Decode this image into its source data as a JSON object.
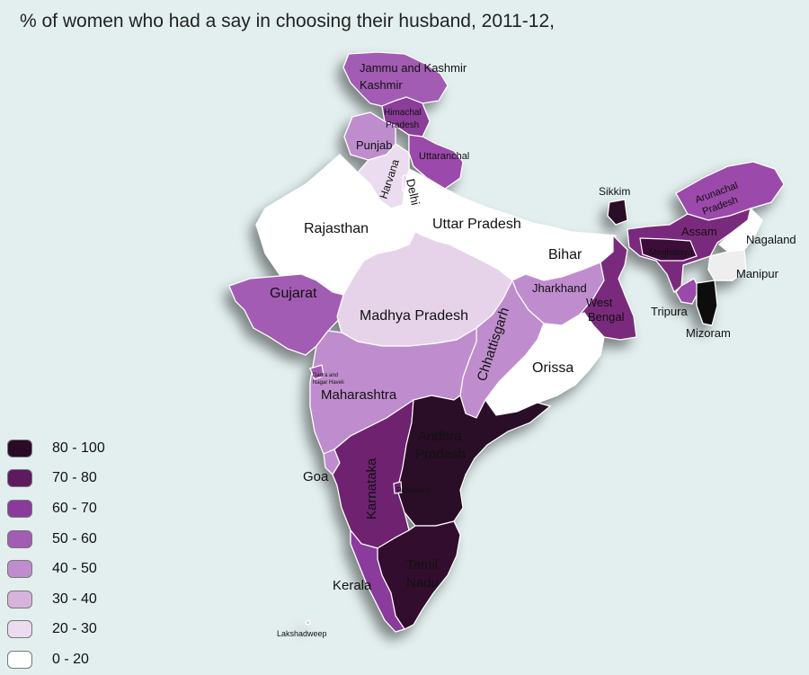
{
  "title": "% of women who had a say in choosing their husband, 2011-12,",
  "legend": [
    {
      "label": "80 - 100",
      "color": "#2a0a26"
    },
    {
      "label": "70 - 80",
      "color": "#5e1a5e"
    },
    {
      "label": "60 - 70",
      "color": "#8b3a9b"
    },
    {
      "label": "50 - 60",
      "color": "#a35cb3"
    },
    {
      "label": "40 - 50",
      "color": "#bf8dce"
    },
    {
      "label": "30 - 40",
      "color": "#d6b3da"
    },
    {
      "label": "20 - 30",
      "color": "#ecdcef"
    },
    {
      "label": "0 - 20",
      "color": "#ffffff"
    }
  ],
  "states": [
    {
      "id": "jammu-kashmir",
      "name": "Jammu and Kashmir",
      "range": "50 - 60",
      "color": "#a35cb3"
    },
    {
      "id": "himachal",
      "name": "Himachal Pradesh",
      "range": "70 - 80",
      "color": "#8a3c99"
    },
    {
      "id": "punjab",
      "name": "Punjab",
      "range": "40 - 50",
      "color": "#bf8dce"
    },
    {
      "id": "uttaranchal",
      "name": "Uttaranchal",
      "range": "60 - 70",
      "color": "#9b4aaa"
    },
    {
      "id": "haryana",
      "name": "Harvana",
      "range": "20 - 30",
      "color": "#ecdcef"
    },
    {
      "id": "delhi",
      "name": "Delhi",
      "range": "20 - 30",
      "color": "#ecdcef"
    },
    {
      "id": "rajasthan",
      "name": "Rajasthan",
      "range": "0 - 20",
      "color": "#ffffff"
    },
    {
      "id": "uttar-pradesh",
      "name": "Uttar Pradesh",
      "range": "0 - 20",
      "color": "#ffffff"
    },
    {
      "id": "bihar",
      "name": "Bihar",
      "range": "0 - 20",
      "color": "#ffffff"
    },
    {
      "id": "gujarat",
      "name": "Gujarat",
      "range": "50 - 60",
      "color": "#a35cb3"
    },
    {
      "id": "madhya-pradesh",
      "name": "Madhya Pradesh",
      "range": "20 - 30",
      "color": "#e6d3ea"
    },
    {
      "id": "jharkhand",
      "name": "Jharkhand",
      "range": "40 - 50",
      "color": "#bf8dce"
    },
    {
      "id": "west-bengal",
      "name": "West Bengal",
      "range": "70 - 80",
      "color": "#7a2a7c"
    },
    {
      "id": "chhattisgarh",
      "name": "Chhattisgarh",
      "range": "40 - 50",
      "color": "#bf8dce"
    },
    {
      "id": "orissa",
      "name": "Orissa",
      "range": "0 - 20",
      "color": "#ffffff"
    },
    {
      "id": "maharashtra",
      "name": "Maharashtra",
      "range": "40 - 50",
      "color": "#bf8dce"
    },
    {
      "id": "dadra",
      "name": "Dadra and Nagar Haveli",
      "range": "50 - 60",
      "color": "#a35cb3"
    },
    {
      "id": "goa",
      "name": "Goa",
      "range": "40 - 50",
      "color": "#bf8dce"
    },
    {
      "id": "karnataka",
      "name": "Karnataka",
      "range": "70 - 80",
      "color": "#6e2470"
    },
    {
      "id": "andhra-pradesh",
      "name": "Andhra Pradesh",
      "range": "80 - 100",
      "color": "#2a0a26"
    },
    {
      "id": "pudicherry",
      "name": "Pudicherry",
      "range": "70 - 80",
      "color": "#6e2470"
    },
    {
      "id": "tamil-nadu",
      "name": "Tamil Nadu",
      "range": "80 - 100",
      "color": "#33102f"
    },
    {
      "id": "kerala",
      "name": "Kerala",
      "range": "60 - 70",
      "color": "#8b3a9b"
    },
    {
      "id": "lakshadweep",
      "name": "Lakshadweep",
      "range": "",
      "color": "#cccccc"
    },
    {
      "id": "sikkim",
      "name": "Sikkim",
      "range": "80 - 100",
      "color": "#2a0a26"
    },
    {
      "id": "arunachal",
      "name": "Arunachal Pradesh",
      "range": "60 - 70",
      "color": "#9b4aaa"
    },
    {
      "id": "assam",
      "name": "Assam",
      "range": "70 - 80",
      "color": "#7a2a7c"
    },
    {
      "id": "meghalaya",
      "name": "Meghalaya",
      "range": "80 - 100",
      "color": "#3a1038"
    },
    {
      "id": "nagaland",
      "name": "Nagaland",
      "range": "0 - 20",
      "color": "#ffffff"
    },
    {
      "id": "manipur",
      "name": "Manipur",
      "range": "0 - 20",
      "color": "#eeeeee"
    },
    {
      "id": "tripura",
      "name": "Tripura",
      "range": "60 - 70",
      "color": "#9b4aaa"
    },
    {
      "id": "mizoram",
      "name": "Mizoram",
      "range": "80 - 100",
      "color": "#111111"
    }
  ]
}
